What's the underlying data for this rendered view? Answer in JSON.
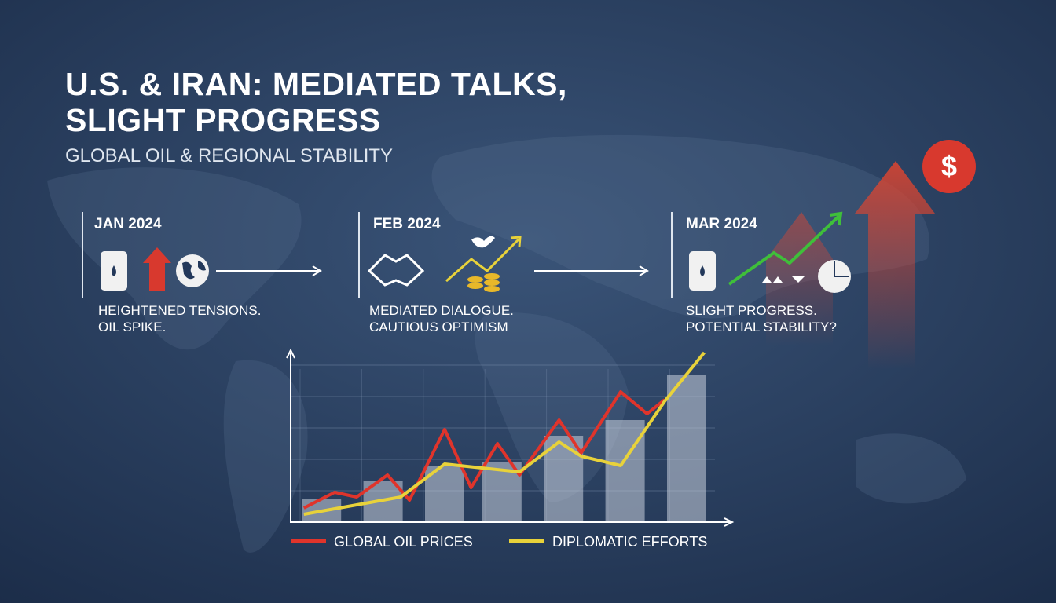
{
  "header": {
    "title_lines": [
      "U.S. & IRAN: MEDIATED TALKS,",
      "SLIGHT PROGRESS"
    ],
    "subtitle": "GLOBAL OIL & REGIONAL STABILITY",
    "badge": "$"
  },
  "timeline": [
    {
      "date": "JAN 2024",
      "caption": [
        "HEIGHTENED TENSIONS.",
        "OIL SPIKE."
      ]
    },
    {
      "date": "FEB 2024",
      "caption": [
        "MEDIATED DIALOGUE.",
        "CAUTIOUS OPTIMISM"
      ]
    },
    {
      "date": "MAR 2024",
      "caption": [
        "SLIGHT PROGRESS.",
        "POTENTIAL STABILITY?"
      ]
    }
  ],
  "chart_data": {
    "type": "line",
    "xlim": [
      0,
      100
    ],
    "ylim": [
      0,
      110
    ],
    "yticks": [
      0,
      20,
      40,
      60,
      80,
      100
    ],
    "grid": true,
    "bars": {
      "x": [
        7,
        21,
        35,
        48,
        62,
        76,
        90
      ],
      "values": [
        15,
        26,
        36,
        38,
        55,
        65,
        94
      ],
      "color": "#c8d0dc"
    },
    "series": [
      {
        "name": "GLOBAL OIL PRICES",
        "color": "#e0342b",
        "x": [
          3,
          10,
          15,
          22,
          27,
          35,
          41,
          47,
          52,
          61,
          66,
          75,
          81,
          85
        ],
        "values": [
          9,
          19,
          16,
          30,
          14,
          59,
          22,
          50,
          30,
          65,
          44,
          83,
          69,
          78
        ]
      },
      {
        "name": "DIPLOMATIC EFFORTS",
        "color": "#e8d23a",
        "x": [
          3,
          25,
          35,
          52,
          61,
          66,
          75,
          85,
          94
        ],
        "values": [
          5,
          16,
          37,
          32,
          51,
          42,
          36,
          77,
          108
        ]
      }
    ]
  }
}
